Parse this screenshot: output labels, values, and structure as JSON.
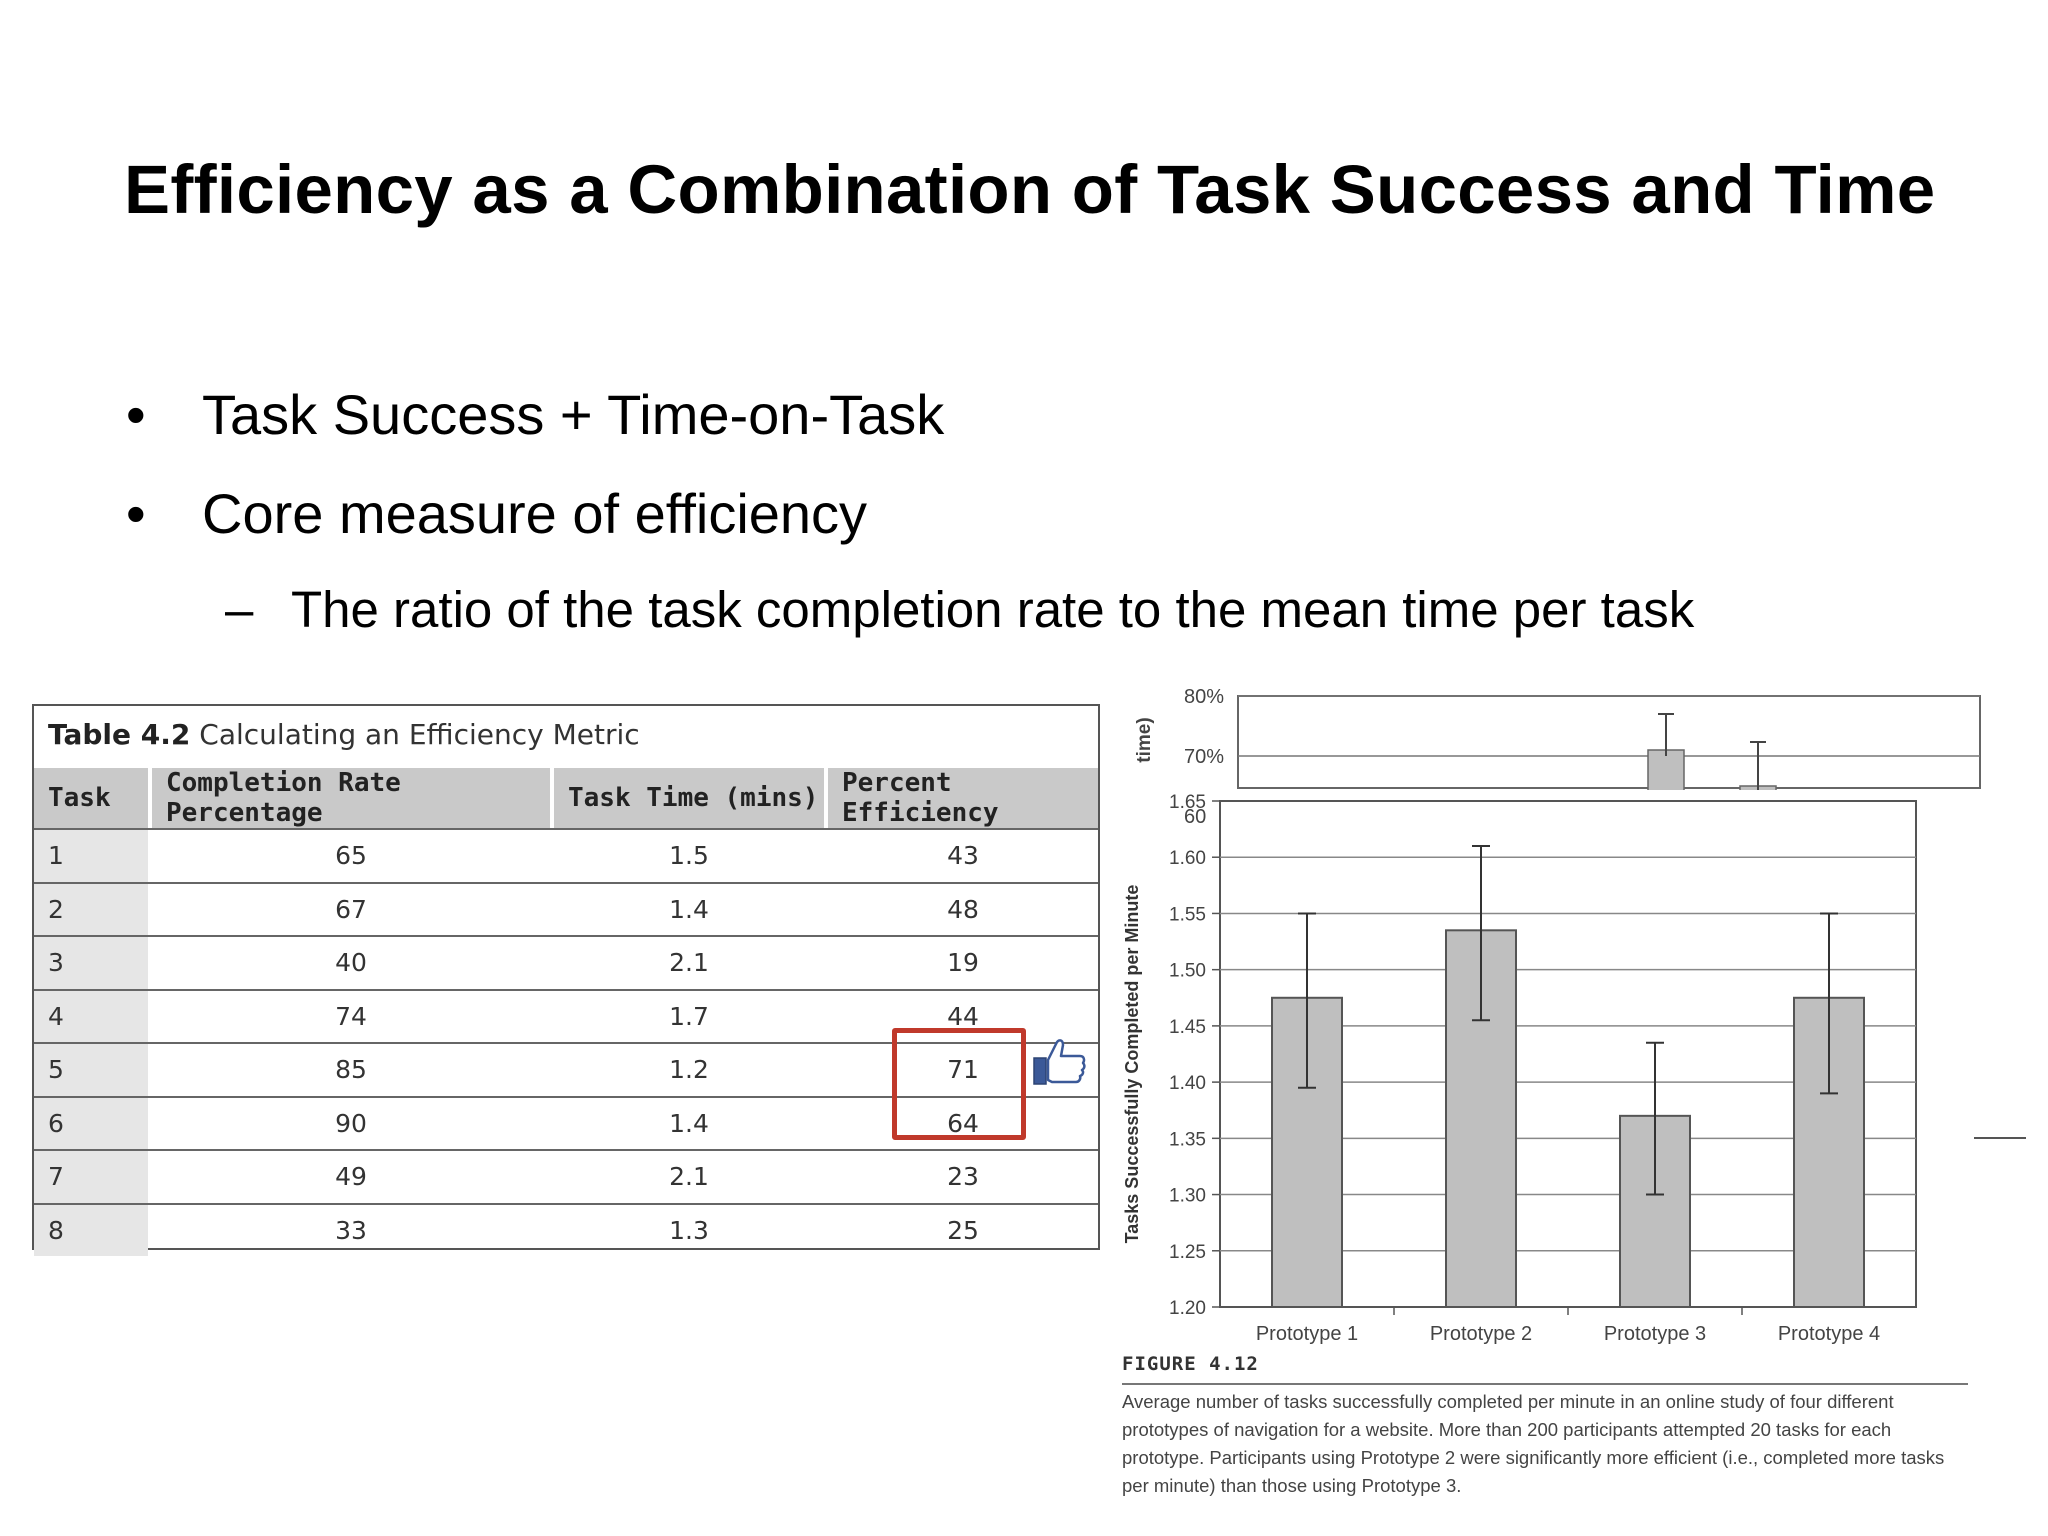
{
  "slide": {
    "title": "Efficiency as a Combination of Task Success and Time",
    "bullets": [
      {
        "mark": "•",
        "text": "Task Success + Time-on-Task"
      },
      {
        "mark": "•",
        "text": "Core measure of efficiency"
      }
    ],
    "sub_bullets": [
      {
        "mark": "–",
        "text": "The ratio of the task completion rate to the mean time per task"
      }
    ]
  },
  "table": {
    "caption_label": "Table 4.2",
    "caption_text": "Calculating an Efficiency Metric",
    "headers": [
      "Task",
      "Completion Rate Percentage",
      "Task Time (mins)",
      "Percent Efficiency"
    ],
    "rows": [
      [
        "1",
        "65",
        "1.5",
        "43"
      ],
      [
        "2",
        "67",
        "1.4",
        "48"
      ],
      [
        "3",
        "40",
        "2.1",
        "19"
      ],
      [
        "4",
        "74",
        "1.7",
        "44"
      ],
      [
        "5",
        "85",
        "1.2",
        "71"
      ],
      [
        "6",
        "90",
        "1.4",
        "64"
      ],
      [
        "7",
        "49",
        "2.1",
        "23"
      ],
      [
        "8",
        "33",
        "1.3",
        "25"
      ]
    ],
    "highlight_color": "#c0392b",
    "thumb_icon": "thumbs-up-icon"
  },
  "chart_data": [
    {
      "type": "bar",
      "categories": [
        "",
        ""
      ],
      "values": [
        71,
        65
      ],
      "ylabel": "time)",
      "ylim": [
        60,
        80
      ],
      "y_tick_labels": [
        "80%",
        "70%",
        "60%"
      ],
      "partially_obscured": true
    },
    {
      "type": "bar",
      "categories": [
        "Prototype 1",
        "Prototype 2",
        "Prototype 3",
        "Prototype 4"
      ],
      "values": [
        1.475,
        1.535,
        1.37,
        1.475
      ],
      "error_low": [
        1.395,
        1.455,
        1.3,
        1.39
      ],
      "error_high": [
        1.55,
        1.61,
        1.435,
        1.55
      ],
      "title": "",
      "xlabel": "",
      "ylabel": "Tasks Successfully Completed per Minute",
      "ylim": [
        1.2,
        1.65
      ],
      "y_ticks": [
        1.2,
        1.25,
        1.3,
        1.35,
        1.4,
        1.45,
        1.5,
        1.55,
        1.6,
        1.65
      ],
      "y_tick_labels": [
        "1.20",
        "1.25",
        "1.30",
        "1.35",
        "1.40",
        "1.45",
        "1.50",
        "1.55",
        "1.60",
        "1.65"
      ],
      "grid": true,
      "bar_color": "#bfbfbf"
    }
  ],
  "figure": {
    "label": "FIGURE 4.12",
    "caption": "Average number of tasks successfully completed per minute in an online study of four different prototypes of navigation for a website. More than 200 participants attempted 20 tasks for each prototype. Participants using Prototype 2 were significantly more efficient (i.e., completed more tasks per minute) than those using Prototype 3."
  }
}
